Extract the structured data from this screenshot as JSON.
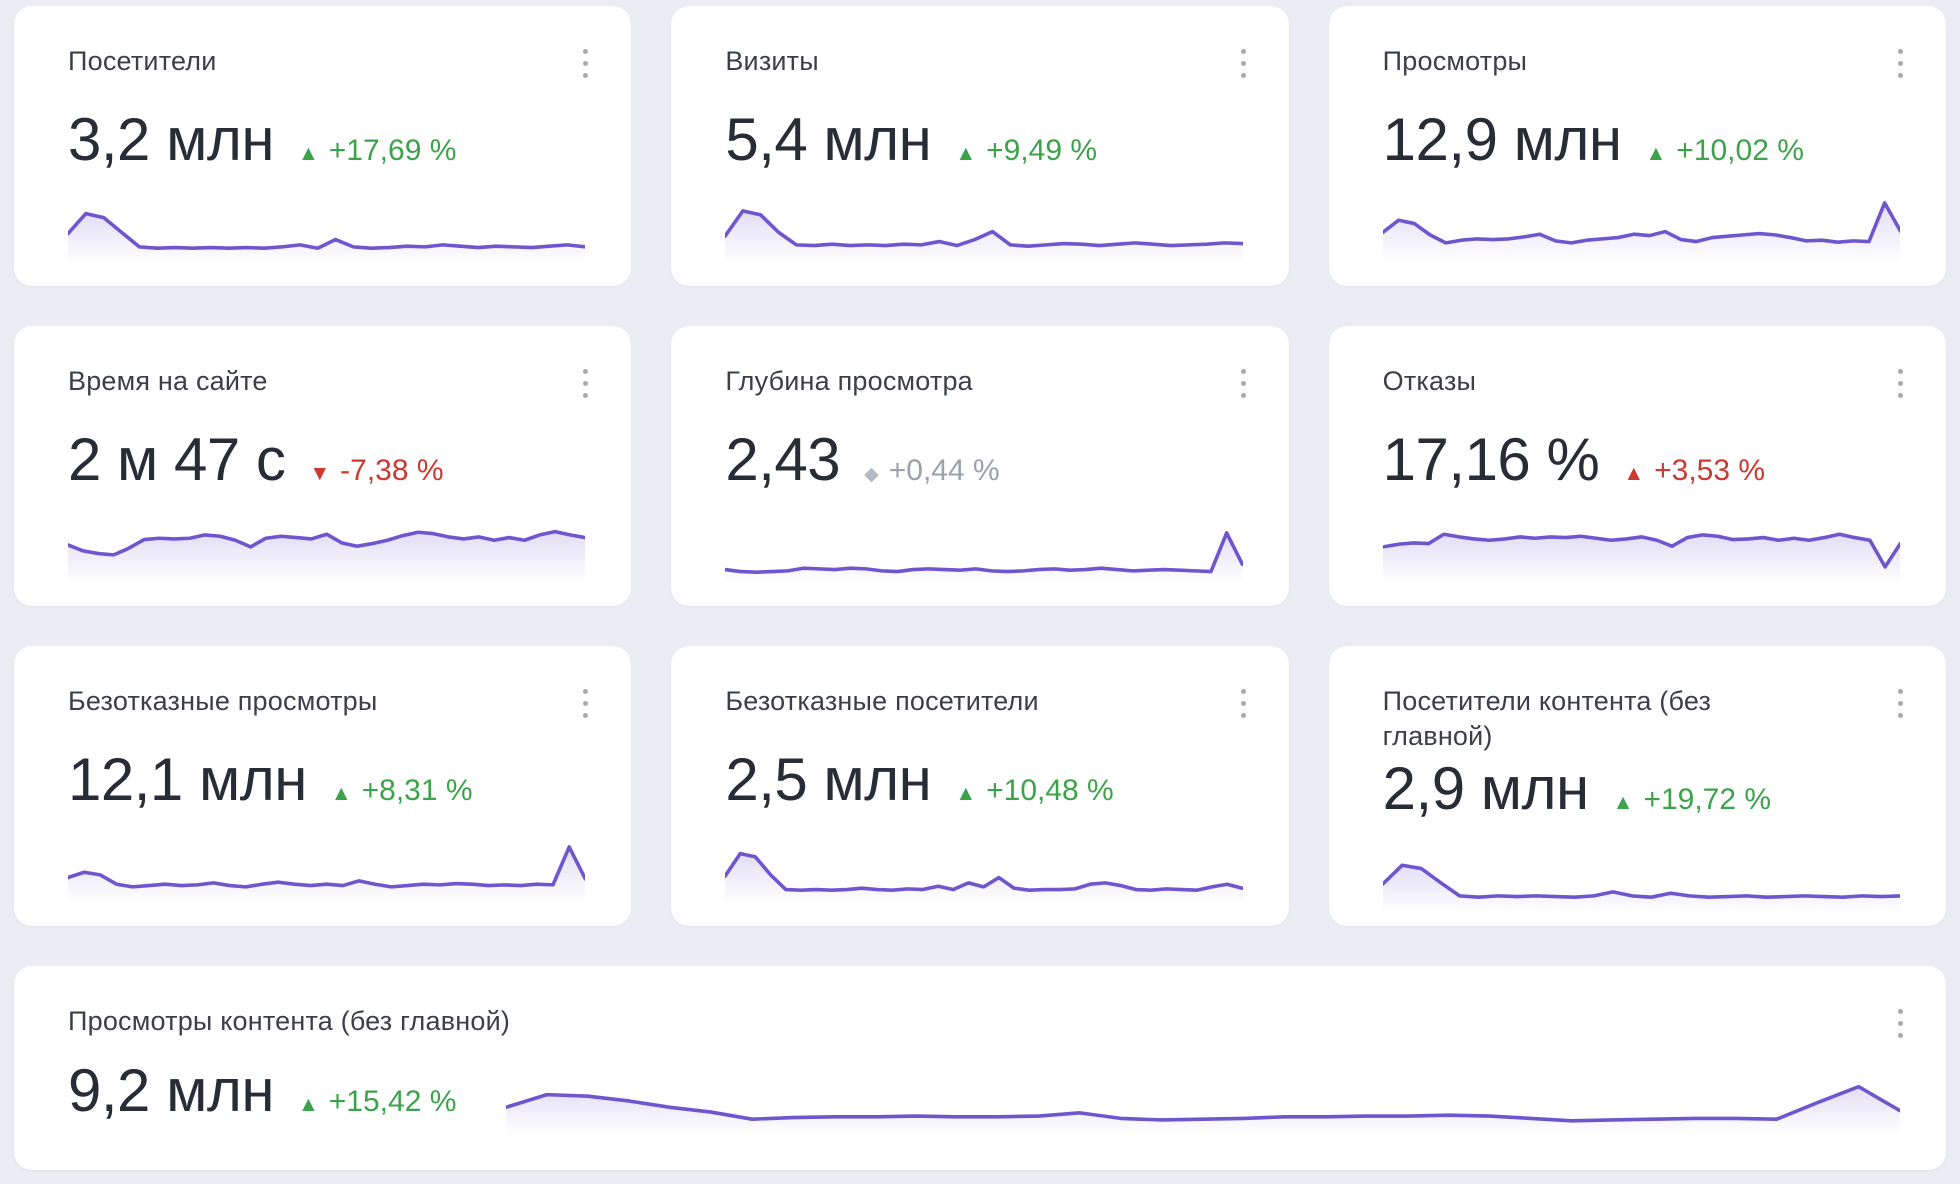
{
  "theme": {
    "background": "#ecedf4",
    "card_background": "#ffffff",
    "title_color": "#3c3f4a",
    "value_color": "#282c37",
    "positive_color": "#3da34a",
    "negative_color": "#cc3931",
    "neutral_text_color": "#9aa1ad",
    "neutral_icon_color": "#b4bac7",
    "sparkline_color": "#6f56cf",
    "kebab_dot_color": "#a6a9b3"
  },
  "icons": {
    "up": "▲",
    "down": "▼",
    "flat": "◆",
    "menu": "kebab-vertical"
  },
  "cards": [
    {
      "id": "visitors",
      "title": "Посетители",
      "value": "3,2 млн",
      "change": {
        "text": "+17,69 %",
        "direction": "up",
        "sentiment": "positive"
      }
    },
    {
      "id": "visits",
      "title": "Визиты",
      "value": "5,4 млн",
      "change": {
        "text": "+9,49 %",
        "direction": "up",
        "sentiment": "positive"
      }
    },
    {
      "id": "views",
      "title": "Просмотры",
      "value": "12,9 млн",
      "change": {
        "text": "+10,02 %",
        "direction": "up",
        "sentiment": "positive"
      }
    },
    {
      "id": "time-on-site",
      "title": "Время на сайте",
      "value": "2 м 47 с",
      "change": {
        "text": "-7,38 %",
        "direction": "down",
        "sentiment": "negative"
      }
    },
    {
      "id": "view-depth",
      "title": "Глубина просмотра",
      "value": "2,43",
      "change": {
        "text": "+0,44 %",
        "direction": "flat",
        "sentiment": "neutral"
      }
    },
    {
      "id": "bounces",
      "title": "Отказы",
      "value": "17,16 %",
      "change": {
        "text": "+3,53 %",
        "direction": "up",
        "sentiment": "negative"
      }
    },
    {
      "id": "bounce-free-views",
      "title": "Безотказные просмотры",
      "value": "12,1 млн",
      "change": {
        "text": "+8,31 %",
        "direction": "up",
        "sentiment": "positive"
      }
    },
    {
      "id": "bounce-free-visitors",
      "title": "Безотказные посетители",
      "value": "2,5 млн",
      "change": {
        "text": "+10,48 %",
        "direction": "up",
        "sentiment": "positive"
      }
    },
    {
      "id": "content-visitors",
      "title": "Посетители контента (без главной)",
      "value": "2,9 млн",
      "change": {
        "text": "+19,72 %",
        "direction": "up",
        "sentiment": "positive"
      }
    },
    {
      "id": "content-views",
      "title": "Просмотры контента (без главной)",
      "value": "9,2 млн",
      "wide": true,
      "change": {
        "text": "+15,42 %",
        "direction": "up",
        "sentiment": "positive"
      }
    }
  ],
  "chart_data": [
    {
      "type": "line",
      "title": "Посетители — спарклайн",
      "legend": false,
      "axes": false,
      "y_normalized_0_100": true,
      "values": [
        42,
        72,
        66,
        44,
        22,
        20,
        21,
        20,
        21,
        20,
        21,
        20,
        22,
        25,
        20,
        33,
        22,
        20,
        21,
        23,
        22,
        25,
        23,
        21,
        23,
        22,
        21,
        23,
        25,
        22
      ]
    },
    {
      "type": "line",
      "title": "Визиты — спарклайн",
      "legend": false,
      "axes": false,
      "y_normalized_0_100": true,
      "values": [
        38,
        76,
        70,
        44,
        25,
        24,
        26,
        24,
        25,
        24,
        26,
        25,
        30,
        24,
        33,
        45,
        25,
        23,
        25,
        27,
        26,
        24,
        26,
        28,
        26,
        24,
        25,
        26,
        28,
        27
      ]
    },
    {
      "type": "line",
      "title": "Просмотры — спарклайн",
      "legend": false,
      "axes": false,
      "y_normalized_0_100": true,
      "values": [
        44,
        62,
        57,
        40,
        28,
        32,
        34,
        33,
        34,
        37,
        41,
        31,
        28,
        32,
        34,
        36,
        41,
        39,
        45,
        33,
        30,
        36,
        38,
        40,
        42,
        40,
        36,
        31,
        32,
        29,
        31,
        30,
        88,
        46
      ]
    },
    {
      "type": "line",
      "title": "Время на сайте — спарклайн",
      "legend": false,
      "axes": false,
      "y_normalized_0_100": true,
      "values": [
        55,
        46,
        42,
        40,
        50,
        63,
        65,
        64,
        65,
        70,
        68,
        62,
        52,
        65,
        68,
        66,
        64,
        71,
        58,
        53,
        57,
        62,
        69,
        74,
        72,
        67,
        64,
        67,
        62,
        66,
        62,
        70,
        75,
        70,
        66
      ]
    },
    {
      "type": "line",
      "title": "Глубина просмотра — спарклайн",
      "legend": false,
      "axes": false,
      "y_normalized_0_100": true,
      "values": [
        18,
        15,
        14,
        15,
        16,
        20,
        19,
        18,
        20,
        19,
        16,
        15,
        18,
        19,
        18,
        17,
        19,
        16,
        15,
        16,
        18,
        19,
        17,
        18,
        20,
        18,
        16,
        17,
        18,
        17,
        16,
        15,
        73,
        26
      ]
    },
    {
      "type": "line",
      "title": "Отказы — спарклайн",
      "legend": false,
      "axes": false,
      "y_normalized_0_100": true,
      "values": [
        52,
        56,
        58,
        57,
        71,
        67,
        64,
        62,
        64,
        67,
        65,
        67,
        66,
        68,
        65,
        62,
        64,
        67,
        62,
        53,
        66,
        70,
        68,
        63,
        64,
        66,
        62,
        65,
        62,
        66,
        71,
        66,
        62,
        22,
        57
      ]
    },
    {
      "type": "line",
      "title": "Безотказные просмотры — спарклайн",
      "legend": false,
      "axes": false,
      "y_normalized_0_100": true,
      "values": [
        36,
        44,
        40,
        26,
        22,
        24,
        26,
        24,
        25,
        28,
        24,
        22,
        26,
        29,
        26,
        24,
        26,
        24,
        31,
        26,
        22,
        24,
        26,
        25,
        27,
        26,
        24,
        25,
        24,
        26,
        25,
        82,
        34
      ]
    },
    {
      "type": "line",
      "title": "Безотказные посетители — спарклайн",
      "legend": false,
      "axes": false,
      "y_normalized_0_100": true,
      "values": [
        38,
        72,
        67,
        40,
        18,
        17,
        18,
        17,
        18,
        20,
        18,
        17,
        19,
        18,
        23,
        18,
        28,
        22,
        36,
        20,
        17,
        18,
        18,
        19,
        26,
        28,
        24,
        18,
        17,
        19,
        18,
        17,
        22,
        26,
        20
      ]
    },
    {
      "type": "line",
      "title": "Посетители контента — спарклайн",
      "legend": false,
      "axes": false,
      "y_normalized_0_100": true,
      "values": [
        40,
        68,
        63,
        42,
        22,
        20,
        22,
        21,
        22,
        21,
        20,
        22,
        28,
        22,
        20,
        26,
        22,
        20,
        21,
        22,
        20,
        21,
        22,
        21,
        20,
        22,
        21,
        22
      ]
    },
    {
      "type": "line",
      "title": "Просмотры контента — спарклайн",
      "legend": false,
      "axes": false,
      "y_normalized_0_100": true,
      "values": [
        30,
        46,
        44,
        38,
        30,
        24,
        15,
        17,
        18,
        18,
        19,
        18,
        18,
        19,
        23,
        16,
        14,
        15,
        16,
        18,
        18,
        19,
        19,
        20,
        19,
        16,
        13,
        14,
        15,
        16,
        16,
        15,
        36,
        56,
        26
      ]
    }
  ]
}
